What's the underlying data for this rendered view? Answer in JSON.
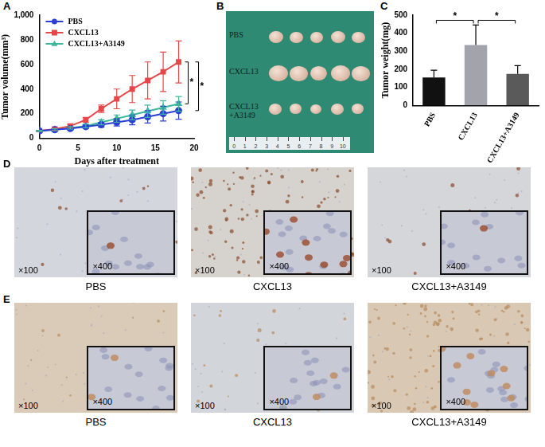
{
  "chart_data": [
    {
      "panel": "A",
      "type": "line",
      "x_label": "Days after treatment",
      "y_label": "Tumor volume(mm³)",
      "x": [
        0,
        2,
        4,
        6,
        8,
        10,
        12,
        14,
        16,
        18
      ],
      "xlim": [
        0,
        20
      ],
      "xticks": [
        0,
        5,
        10,
        15,
        20
      ],
      "ylim": [
        0,
        1000
      ],
      "yticks": [
        0,
        200,
        400,
        600,
        800,
        1000
      ],
      "grid": false,
      "legend": "upper left",
      "series": [
        {
          "name": "PBS",
          "color": "#2b3fd6",
          "marker": "circle",
          "values": [
            60,
            70,
            80,
            95,
            110,
            130,
            150,
            175,
            200,
            225
          ],
          "errors": [
            5,
            8,
            10,
            15,
            20,
            30,
            40,
            50,
            60,
            70
          ]
        },
        {
          "name": "CXCL13",
          "color": "#e8474a",
          "marker": "square",
          "values": [
            60,
            75,
            100,
            150,
            240,
            320,
            400,
            470,
            540,
            620
          ],
          "errors": [
            5,
            10,
            15,
            20,
            30,
            80,
            110,
            150,
            160,
            170
          ]
        },
        {
          "name": "CXCL13+A3149",
          "color": "#3cb89c",
          "marker": "triangle",
          "values": [
            60,
            70,
            85,
            100,
            130,
            160,
            190,
            220,
            250,
            280
          ],
          "errors": [
            5,
            8,
            10,
            15,
            20,
            30,
            40,
            50,
            55,
            60
          ]
        }
      ],
      "annotations": [
        {
          "from": "CXCL13",
          "to": "CXCL13+A3149",
          "label": "*"
        },
        {
          "from": "CXCL13",
          "to": "PBS",
          "label": "*"
        }
      ]
    },
    {
      "panel": "C",
      "type": "bar",
      "y_label": "Tumor weight(mg)",
      "categories": [
        "PBS",
        "CXCL13",
        "CXCL13+A3149"
      ],
      "values": [
        155,
        335,
        175
      ],
      "errors": [
        40,
        110,
        45
      ],
      "colors": [
        "#111111",
        "#a3a3ab",
        "#5a5a5a"
      ],
      "ylim": [
        0,
        500
      ],
      "yticks": [
        0,
        100,
        200,
        300,
        400,
        500
      ],
      "grid": false,
      "annotations": [
        {
          "from": "PBS",
          "to": "CXCL13",
          "label": "*"
        },
        {
          "from": "CXCL13",
          "to": "CXCL13+A3149",
          "label": "*"
        }
      ]
    }
  ],
  "photo": {
    "panel": "B",
    "rows": [
      {
        "label": "PBS",
        "tumors": 5
      },
      {
        "label": "CXCL13",
        "tumors": 5
      },
      {
        "label": "CXCL13 +A3149",
        "tumors": 5
      }
    ],
    "ruler": [
      0,
      1,
      2,
      3,
      4,
      5,
      6,
      7,
      8,
      9,
      10
    ]
  },
  "micrographs": [
    {
      "panel": "D",
      "images": [
        {
          "caption": "PBS",
          "low_mag": "×100",
          "high_mag": "×400"
        },
        {
          "caption": "CXCL13",
          "low_mag": "×100",
          "high_mag": "×400"
        },
        {
          "caption": "CXCL13+A3149",
          "low_mag": "×100",
          "high_mag": "×400"
        }
      ]
    },
    {
      "panel": "E",
      "images": [
        {
          "caption": "PBS",
          "low_mag": "×100",
          "high_mag": "×400"
        },
        {
          "caption": "CXCL13",
          "low_mag": "×100",
          "high_mag": "×400"
        },
        {
          "caption": "CXCL13+A3149",
          "low_mag": "×100",
          "high_mag": "×400"
        }
      ]
    }
  ]
}
